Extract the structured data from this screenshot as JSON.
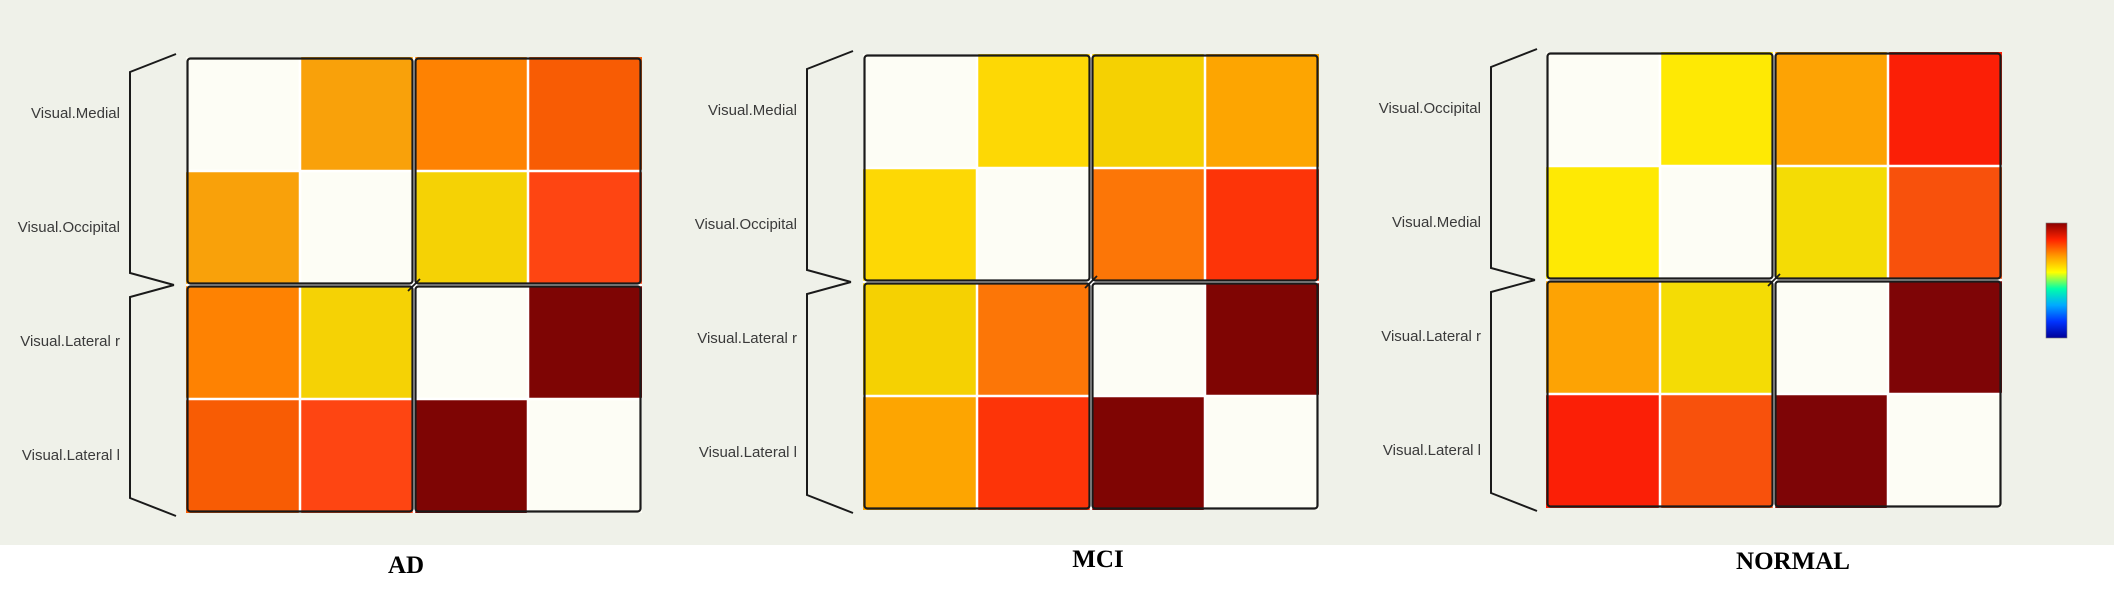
{
  "colors": {
    "background": "#eff1e9",
    "page": "#ffffff",
    "text": "#3a3a3a"
  },
  "colorbar": {
    "colors": [
      "#8b0000",
      "#ff2200",
      "#ff9900",
      "#ffff00",
      "#00ffaa",
      "#00aaff",
      "#0033ff",
      "#000099"
    ],
    "max_label": "",
    "min_label": ""
  },
  "chart_data": [
    {
      "type": "heatmap",
      "title": "AD",
      "row_labels": [
        "Visual.Medial",
        "Visual.Occipital",
        "Visual.Lateral r",
        "Visual.Lateral l"
      ],
      "values": [
        [
          1.0,
          0.62,
          0.5,
          0.4
        ],
        [
          0.62,
          1.0,
          0.78,
          0.3
        ],
        [
          0.5,
          0.78,
          1.0,
          0.05
        ],
        [
          0.4,
          0.3,
          0.05,
          1.0
        ]
      ],
      "cell_colors": [
        [
          "#fdfdf5",
          "#f9a10a",
          "#fe8202",
          "#f85c04"
        ],
        [
          "#f9a10a",
          "#fdfdf5",
          "#f5d205",
          "#fe4512"
        ],
        [
          "#fe8202",
          "#f5d205",
          "#fdfdf5",
          "#7e0504"
        ],
        [
          "#f85c04",
          "#fe4512",
          "#7e0504",
          "#fdfdf5"
        ]
      ],
      "groups": [
        [
          "Visual.Medial",
          "Visual.Occipital"
        ],
        [
          "Visual.Lateral r",
          "Visual.Lateral l"
        ]
      ]
    },
    {
      "type": "heatmap",
      "title": "MCI",
      "row_labels": [
        "Visual.Medial",
        "Visual.Occipital",
        "Visual.Lateral r",
        "Visual.Lateral l"
      ],
      "values": [
        [
          1.0,
          0.8,
          0.76,
          0.62
        ],
        [
          0.8,
          1.0,
          0.48,
          0.28
        ],
        [
          0.76,
          0.48,
          1.0,
          0.05
        ],
        [
          0.62,
          0.28,
          0.05,
          1.0
        ]
      ],
      "cell_colors": [
        [
          "#fdfdf5",
          "#fdd805",
          "#f5d102",
          "#fda501"
        ],
        [
          "#fdd805",
          "#fdfdf5",
          "#fc7607",
          "#fd3408"
        ],
        [
          "#f5d102",
          "#fc7607",
          "#fdfdf5",
          "#7f0503"
        ],
        [
          "#fda501",
          "#fd3408",
          "#7f0503",
          "#fdfdf5"
        ]
      ],
      "groups": [
        [
          "Visual.Medial",
          "Visual.Occipital"
        ],
        [
          "Visual.Lateral r",
          "Visual.Lateral l"
        ]
      ]
    },
    {
      "type": "heatmap",
      "title": "NORMAL",
      "row_labels": [
        "Visual.Occipital",
        "Visual.Medial",
        "Visual.Lateral r",
        "Visual.Lateral l"
      ],
      "values": [
        [
          1.0,
          0.88,
          0.62,
          0.2
        ],
        [
          0.88,
          1.0,
          0.82,
          0.38
        ],
        [
          0.62,
          0.82,
          1.0,
          0.05
        ],
        [
          0.2,
          0.38,
          0.05,
          1.0
        ]
      ],
      "cell_colors": [
        [
          "#fdfdf5",
          "#fee904",
          "#fda304",
          "#fb1f06"
        ],
        [
          "#fee904",
          "#fdfdf5",
          "#f4dc05",
          "#f8510c"
        ],
        [
          "#fda304",
          "#f4dc05",
          "#fdfdf5",
          "#7e0506"
        ],
        [
          "#fb1f06",
          "#f8510c",
          "#7e0506",
          "#fdfdf5"
        ]
      ],
      "groups": [
        [
          "Visual.Occipital",
          "Visual.Medial"
        ],
        [
          "Visual.Lateral r",
          "Visual.Lateral l"
        ]
      ]
    }
  ]
}
